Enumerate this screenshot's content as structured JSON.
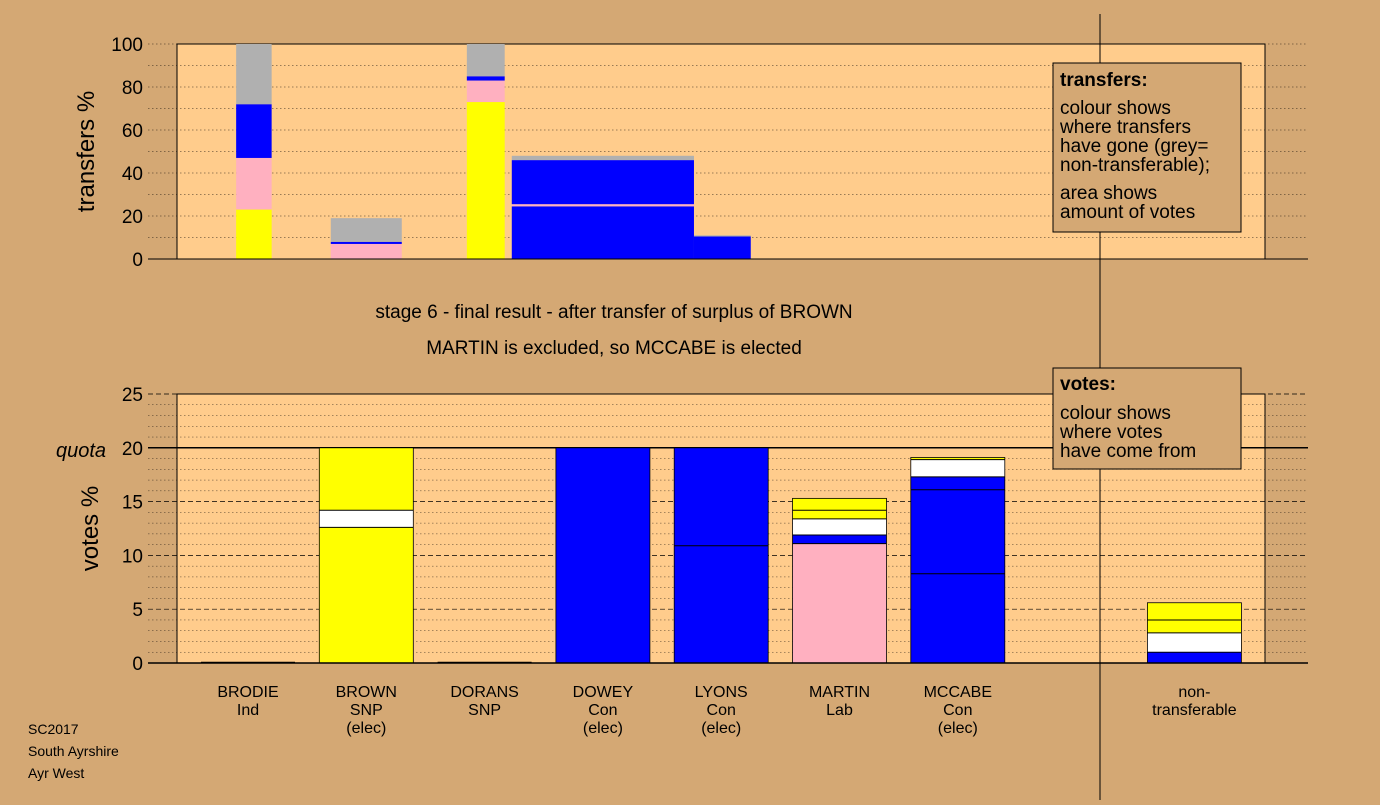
{
  "page_bg": "#d4a874",
  "plot_bg": "#ffcc8c",
  "legend_bg": "#d4a874",
  "colors": {
    "Ind": "#ffff00",
    "SNP": "#ffff00",
    "Con": "#0000ff",
    "Lab": "#ffb0c0",
    "nontransferable": "#b0b0b0",
    "other": "#ffffff"
  },
  "titles": {
    "line1": "stage 6 - final result - after transfer of surplus of BROWN",
    "line2": "MARTIN is excluded, so MCCABE is elected"
  },
  "footer": [
    "SC2017",
    "South Ayrshire",
    "Ayr West"
  ],
  "quota_label": "quota",
  "legends": {
    "transfers": {
      "title": "transfers:",
      "lines": [
        "colour shows",
        "where transfers",
        "have gone (grey=",
        "non-transferable);",
        "area shows",
        "amount of votes"
      ]
    },
    "votes": {
      "title": "votes:",
      "lines": [
        "colour shows",
        "where votes",
        "have come from"
      ]
    }
  },
  "chart_data": [
    {
      "type": "bar",
      "title": "",
      "ylabel": "transfers %",
      "ylim": [
        0,
        100
      ],
      "yticks": [
        0,
        20,
        40,
        60,
        80,
        100
      ],
      "grid": true,
      "legend": "top-right",
      "transfer_bars": [
        {
          "from": "BRODIE",
          "x0": 0.5,
          "x1": 0.8,
          "segments": [
            {
              "to": "BROWN",
              "color": "#ffff00",
              "from_pct": 0,
              "to_pct": 23
            },
            {
              "to": "MARTIN",
              "color": "#ffb0c0",
              "from_pct": 23,
              "to_pct": 47
            },
            {
              "to": "MCCABE",
              "color": "#0000ff",
              "from_pct": 47,
              "to_pct": 72
            },
            {
              "to": "non-transferable",
              "color": "#b0b0b0",
              "from_pct": 72,
              "to_pct": 100
            }
          ]
        },
        {
          "from": "BROWN",
          "x0": 1.3,
          "x1": 1.9,
          "segments": [
            {
              "to": "MARTIN",
              "color": "#ffb0c0",
              "from_pct": 0,
              "to_pct": 7
            },
            {
              "to": "MCCABE",
              "color": "#0000ff",
              "from_pct": 7,
              "to_pct": 8
            },
            {
              "to": "non-transferable",
              "color": "#b0b0b0",
              "from_pct": 8,
              "to_pct": 19
            }
          ]
        },
        {
          "from": "DORANS",
          "x0": 2.45,
          "x1": 2.77,
          "segments": [
            {
              "to": "BROWN",
              "color": "#ffff00",
              "from_pct": 0,
              "to_pct": 73
            },
            {
              "to": "MARTIN",
              "color": "#ffb0c0",
              "from_pct": 73,
              "to_pct": 83
            },
            {
              "to": "MCCABE",
              "color": "#0000ff",
              "from_pct": 83,
              "to_pct": 85
            },
            {
              "to": "non-transferable",
              "color": "#b0b0b0",
              "from_pct": 85,
              "to_pct": 100
            }
          ]
        },
        {
          "from": "DOWEY",
          "x0": 2.83,
          "x1": 4.37,
          "segments": [
            {
              "to": "LYONS",
              "color": "#0000ff",
              "from_pct": 0,
              "to_pct": 24.5
            },
            {
              "to": "MARTIN",
              "color": "#ffb0c0",
              "from_pct": 24.5,
              "to_pct": 25.5
            },
            {
              "to": "MCCABE",
              "color": "#0000ff",
              "from_pct": 25.5,
              "to_pct": 46
            },
            {
              "to": "non-transferable",
              "color": "#b0b0b0",
              "from_pct": 46,
              "to_pct": 48
            }
          ]
        },
        {
          "from": "LYONS",
          "x0": 4.37,
          "x1": 4.85,
          "segments": [
            {
              "to": "MCCABE",
              "color": "#0000ff",
              "from_pct": 0,
              "to_pct": 10.5
            },
            {
              "to": "non-transferable",
              "color": "#b0b0b0",
              "from_pct": 10.5,
              "to_pct": 11
            }
          ]
        }
      ]
    },
    {
      "type": "bar",
      "title": "",
      "ylabel": "votes %",
      "ylim": [
        0,
        25
      ],
      "yticks": [
        0,
        5,
        10,
        15,
        20,
        25
      ],
      "quota": 20,
      "grid": true,
      "legend": "top-right",
      "categories": [
        {
          "name": "BRODIE",
          "party": "Ind",
          "status": ""
        },
        {
          "name": "BROWN",
          "party": "SNP",
          "status": "(elec)"
        },
        {
          "name": "DORANS",
          "party": "SNP",
          "status": ""
        },
        {
          "name": "DOWEY",
          "party": "Con",
          "status": "(elec)"
        },
        {
          "name": "LYONS",
          "party": "Con",
          "status": "(elec)"
        },
        {
          "name": "MARTIN",
          "party": "Lab",
          "status": ""
        },
        {
          "name": "MCCABE",
          "party": "Con",
          "status": "(elec)"
        },
        {
          "name": "non-",
          "party": "transferable",
          "status": ""
        }
      ],
      "bars": [
        {
          "candidate": "BRODIE",
          "slot": 0,
          "segments": []
        },
        {
          "candidate": "BROWN",
          "slot": 1,
          "segments": [
            {
              "source": "BROWN",
              "color": "#ffff00",
              "value": 12.6
            },
            {
              "source": "other",
              "color": "#ffffff",
              "value": 1.6
            },
            {
              "source": "DORANS",
              "color": "#ffff00",
              "value": 5.8
            }
          ]
        },
        {
          "candidate": "DORANS",
          "slot": 2,
          "segments": []
        },
        {
          "candidate": "DOWEY",
          "slot": 3,
          "segments": [
            {
              "source": "DOWEY",
              "color": "#0000ff",
              "value": 20.0
            }
          ]
        },
        {
          "candidate": "LYONS",
          "slot": 4,
          "segments": [
            {
              "source": "LYONS",
              "color": "#0000ff",
              "value": 10.9
            },
            {
              "source": "DOWEY",
              "color": "#0000ff",
              "value": 9.1
            }
          ]
        },
        {
          "candidate": "MARTIN",
          "slot": 5,
          "segments": [
            {
              "source": "MARTIN",
              "color": "#ffb0c0",
              "value": 11.1
            },
            {
              "source": "Con",
              "color": "#0000ff",
              "value": 0.8
            },
            {
              "source": "other",
              "color": "#ffffff",
              "value": 1.5
            },
            {
              "source": "BROWN",
              "color": "#ffff00",
              "value": 0.8
            },
            {
              "source": "DORANS",
              "color": "#ffff00",
              "value": 1.1
            }
          ]
        },
        {
          "candidate": "MCCABE",
          "slot": 6,
          "segments": [
            {
              "source": "MCCABE",
              "color": "#0000ff",
              "value": 8.3
            },
            {
              "source": "DOWEY",
              "color": "#0000ff",
              "value": 7.8
            },
            {
              "source": "LYONS",
              "color": "#0000ff",
              "value": 1.2
            },
            {
              "source": "other",
              "color": "#ffffff",
              "value": 1.6
            },
            {
              "source": "BROWN",
              "color": "#ffff00",
              "value": 0.2
            }
          ]
        },
        {
          "candidate": "non-transferable",
          "slot": 8,
          "segments": [
            {
              "source": "Con",
              "color": "#0000ff",
              "value": 1.0
            },
            {
              "source": "other",
              "color": "#ffffff",
              "value": 1.8
            },
            {
              "source": "SNP",
              "color": "#ffff00",
              "value": 1.2
            },
            {
              "source": "SNP",
              "color": "#ffff00",
              "value": 1.6
            }
          ]
        }
      ]
    }
  ]
}
